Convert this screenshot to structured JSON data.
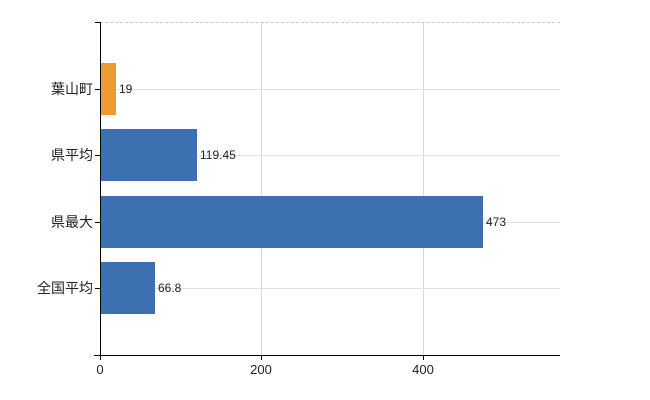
{
  "chart_data": {
    "type": "bar",
    "orientation": "horizontal",
    "title": "",
    "categories": [
      "葉山町",
      "県平均",
      "県最大",
      "全国平均"
    ],
    "values": [
      19,
      119.45,
      473,
      66.8
    ],
    "value_labels": [
      "19",
      "119.45",
      "473",
      "66.8"
    ],
    "bar_colors": [
      "#EE9A31",
      "#3C70B0",
      "#3C70B0",
      "#3C70B0"
    ],
    "highlight_category": "葉山町",
    "xlabel": "",
    "ylabel": "",
    "x_ticks": [
      0,
      200,
      400
    ],
    "x_tick_labels": [
      "0",
      "200",
      "400"
    ],
    "xlim": [
      0,
      570
    ],
    "grid": "on",
    "legend": "none"
  },
  "colors": {
    "bar_default": "#3C70B0",
    "bar_highlight": "#EE9A31",
    "axis_line": "#000000",
    "horizontal_gridline": "#dde4dc",
    "vertical_gridline": "#d9d9d9",
    "top_border_dashed": "#c9c9c9",
    "text": "#222222",
    "background": "#ffffff"
  }
}
